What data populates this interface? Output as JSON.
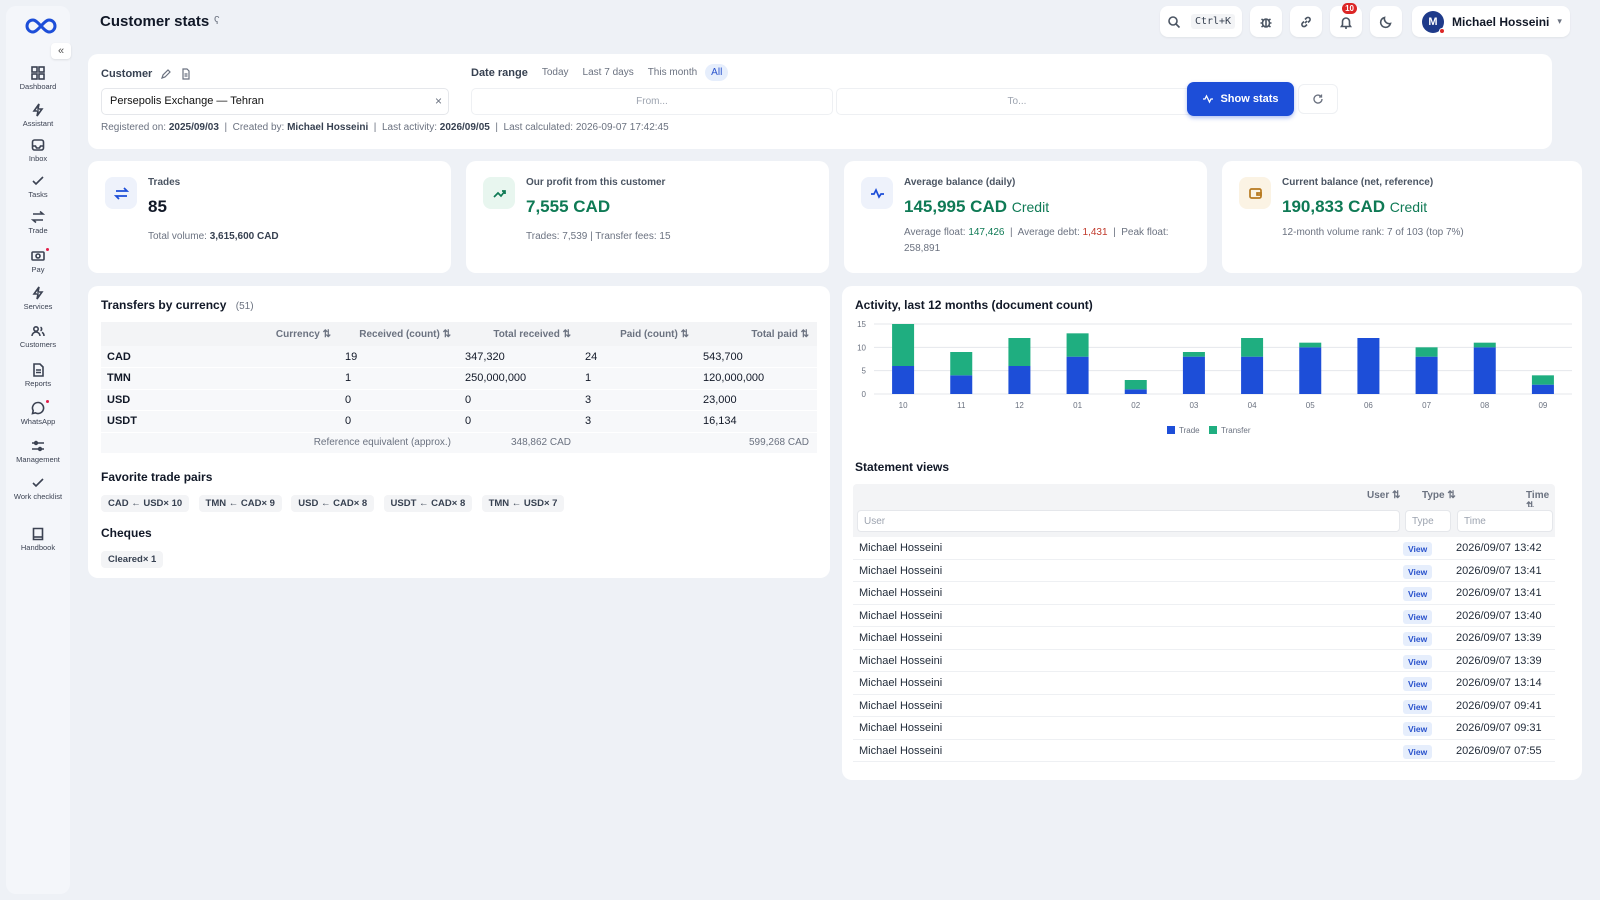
{
  "sidebar": {
    "collapse": "«",
    "items": [
      {
        "label": "Dashboard"
      },
      {
        "label": "Assistant"
      },
      {
        "label": "Inbox"
      },
      {
        "label": "Tasks"
      },
      {
        "label": "Trade"
      },
      {
        "label": "Pay"
      },
      {
        "label": "Services"
      },
      {
        "label": "Customers"
      },
      {
        "label": "Reports"
      },
      {
        "label": "WhatsApp"
      },
      {
        "label": "Management"
      },
      {
        "label": "Work checklist"
      },
      {
        "label": "Handbook"
      }
    ]
  },
  "header": {
    "title": "Customer stats",
    "search_shortcut": "Ctrl+K",
    "notification_count": "10",
    "user_initial": "M",
    "user_name": "Michael Hosseini",
    "user_caret": "▾"
  },
  "filter": {
    "customer_label": "Customer",
    "customer_value": "Persepolis Exchange — Tehran",
    "clear": "×",
    "date_range_label": "Date range",
    "chips": [
      "Today",
      "Last 7 days",
      "This month",
      "All"
    ],
    "active_chip": "All",
    "from_placeholder": "From...",
    "to_placeholder": "To...",
    "show_button": "Show stats",
    "meta": {
      "registered_label": "Registered on:",
      "registered": "2025/09/03",
      "created_label": "Created by:",
      "created_by": "Michael Hosseini",
      "activity_label": "Last activity:",
      "last_activity": "2026/09/05",
      "calculated_label": "Last calculated:",
      "last_calculated": "2026-09-07 17:42:45"
    }
  },
  "stats": {
    "trades": {
      "label": "Trades",
      "value": "85",
      "sub_label": "Total volume:",
      "sub_value": "3,615,600 CAD"
    },
    "profit": {
      "label": "Our profit from this customer",
      "value": "7,555 CAD",
      "sub": "Trades: 7,539  |  Transfer fees: 15"
    },
    "avg_balance": {
      "label": "Average balance (daily)",
      "value": "145,995 CAD",
      "suffix": "Credit",
      "float_label": "Average float:",
      "float": "147,426",
      "debt_label": "Average debt:",
      "debt": "1,431",
      "peak_label": "Peak float:",
      "peak": "258,891"
    },
    "current_balance": {
      "label": "Current balance (net, reference)",
      "value": "190,833 CAD",
      "suffix": "Credit",
      "sub": "12-month volume rank: 7 of 103 (top 7%)"
    },
    "colors": {
      "green": "#0f7a55",
      "red": "#c0392b",
      "accent": "#1d4ed8"
    }
  },
  "transfers": {
    "title": "Transfers by currency",
    "count": "(51)",
    "columns": [
      "Currency ⇅",
      "Received (count) ⇅",
      "Total received ⇅",
      "Paid (count) ⇅",
      "Total paid ⇅"
    ],
    "rows": [
      [
        "CAD",
        "19",
        "347,320",
        "24",
        "543,700"
      ],
      [
        "TMN",
        "1",
        "250,000,000",
        "1",
        "120,000,000"
      ],
      [
        "USD",
        "0",
        "0",
        "3",
        "23,000"
      ],
      [
        "USDT",
        "0",
        "0",
        "3",
        "16,134"
      ]
    ],
    "reference": {
      "label": "Reference equivalent (approx.)",
      "received": "348,862 CAD",
      "paid": "599,268 CAD"
    }
  },
  "favorites": {
    "title": "Favorite trade pairs",
    "pairs": [
      "CAD ← USD× 10",
      "TMN ← CAD× 9",
      "USD ← CAD× 8",
      "USDT ← CAD× 8",
      "TMN ← USD× 7"
    ]
  },
  "cheques": {
    "title": "Cheques",
    "items": [
      "Cleared× 1"
    ]
  },
  "chart_data": {
    "type": "bar",
    "stacked": true,
    "title": "Activity, last 12 months (document count)",
    "categories": [
      "10",
      "11",
      "12",
      "01",
      "02",
      "03",
      "04",
      "05",
      "06",
      "07",
      "08",
      "09"
    ],
    "series": [
      {
        "name": "Trade",
        "color": "#1d4ed8",
        "values": [
          6,
          4,
          6,
          8,
          1,
          8,
          8,
          10,
          12,
          8,
          10,
          2
        ]
      },
      {
        "name": "Transfer",
        "color": "#1fae80",
        "values": [
          9,
          5,
          6,
          5,
          2,
          1,
          4,
          1,
          0,
          2,
          1,
          2
        ]
      }
    ],
    "ylim": [
      0,
      15
    ],
    "yticks": [
      "0",
      "5",
      "10",
      "15"
    ],
    "grid": true,
    "legend": "bottom"
  },
  "statements": {
    "title": "Statement views",
    "columns": {
      "user": "User ⇅",
      "type": "Type ⇅",
      "time": "Time ⇅"
    },
    "filters": {
      "user": "User",
      "type": "Type",
      "time": "Time"
    },
    "rows": [
      {
        "user": "Michael Hosseini",
        "type": "View",
        "time": "2026/09/07 13:42"
      },
      {
        "user": "Michael Hosseini",
        "type": "View",
        "time": "2026/09/07 13:41"
      },
      {
        "user": "Michael Hosseini",
        "type": "View",
        "time": "2026/09/07 13:41"
      },
      {
        "user": "Michael Hosseini",
        "type": "View",
        "time": "2026/09/07 13:40"
      },
      {
        "user": "Michael Hosseini",
        "type": "View",
        "time": "2026/09/07 13:39"
      },
      {
        "user": "Michael Hosseini",
        "type": "View",
        "time": "2026/09/07 13:39"
      },
      {
        "user": "Michael Hosseini",
        "type": "View",
        "time": "2026/09/07 13:14"
      },
      {
        "user": "Michael Hosseini",
        "type": "View",
        "time": "2026/09/07 09:41"
      },
      {
        "user": "Michael Hosseini",
        "type": "View",
        "time": "2026/09/07 09:31"
      },
      {
        "user": "Michael Hosseini",
        "type": "View",
        "time": "2026/09/07 07:55"
      }
    ]
  }
}
